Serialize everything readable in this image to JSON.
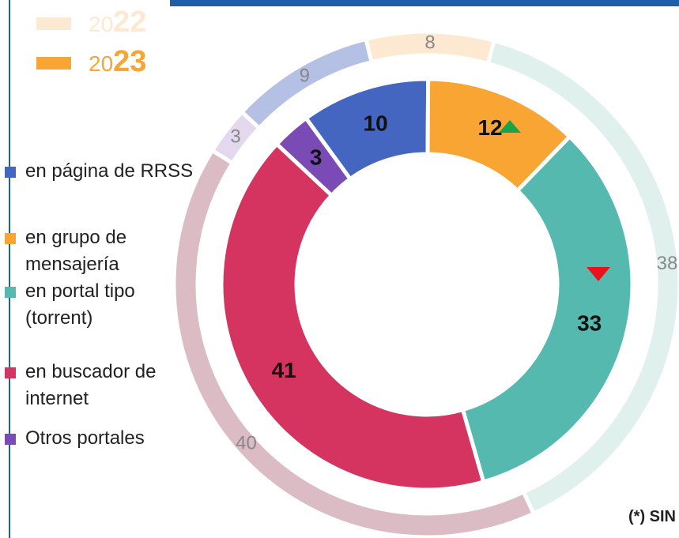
{
  "chart_data": {
    "type": "donut",
    "categories": [
      "en página de RRSS",
      "en grupo de mensajería",
      "en portal tipo (torrent)",
      "en buscador de internet",
      "Otros portales"
    ],
    "series": [
      {
        "name": "2022",
        "color": "#fde9d2",
        "colors": [
          "#b4c0e4",
          "#fde9d2",
          "#dff0ed",
          "#dbbcc5",
          "#e4d8ef"
        ],
        "values": [
          9,
          8,
          38,
          40,
          3
        ]
      },
      {
        "name": "2023",
        "color": "#f9a533",
        "colors": [
          "#4466c0",
          "#f9a533",
          "#56b9b0",
          "#d4345f",
          "#7b4bb5"
        ],
        "values": [
          10,
          12,
          33,
          41,
          3
        ]
      }
    ],
    "footnote": "(*) SIN"
  }
}
